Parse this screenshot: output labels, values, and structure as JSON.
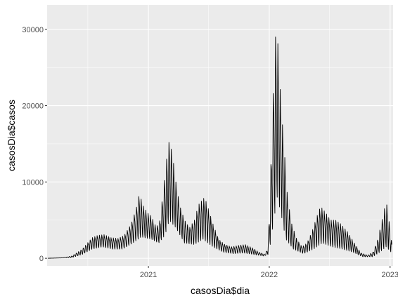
{
  "chart_data": {
    "type": "line",
    "title": "",
    "xlabel": "casosDia$dia",
    "ylabel": "casosDia$casos",
    "xlim": [
      "2020-03-01",
      "2023-01-10"
    ],
    "ylim": [
      -1000,
      33200
    ],
    "x_ticks": [
      {
        "label": "2021",
        "date": "2021-01-01"
      },
      {
        "label": "2022",
        "date": "2022-01-01"
      },
      {
        "label": "2023",
        "date": "2023-01-01"
      }
    ],
    "y_ticks": [
      {
        "label": "0",
        "value": 0
      },
      {
        "label": "10000",
        "value": 10000
      },
      {
        "label": "20000",
        "value": 20000
      },
      {
        "label": "30000",
        "value": 30000
      }
    ],
    "grid": true,
    "panel_background": "#ebebeb",
    "grid_color": "#ffffff",
    "line_color": "#000000",
    "series": [
      {
        "envelope_high": [
          [
            "2020-03-01",
            0
          ],
          [
            "2020-04-15",
            50
          ],
          [
            "2020-05-15",
            300
          ],
          [
            "2020-06-15",
            1200
          ],
          [
            "2020-07-01",
            2000
          ],
          [
            "2020-07-15",
            2700
          ],
          [
            "2020-08-01",
            3000
          ],
          [
            "2020-08-20",
            3100
          ],
          [
            "2020-09-10",
            2700
          ],
          [
            "2020-10-01",
            2600
          ],
          [
            "2020-10-20",
            3000
          ],
          [
            "2020-11-10",
            4500
          ],
          [
            "2020-11-25",
            6500
          ],
          [
            "2020-12-05",
            8500
          ],
          [
            "2020-12-15",
            7000
          ],
          [
            "2020-12-28",
            6000
          ],
          [
            "2021-01-10",
            5500
          ],
          [
            "2021-01-25",
            4000
          ],
          [
            "2021-02-05",
            5000
          ],
          [
            "2021-02-15",
            9000
          ],
          [
            "2021-02-25",
            13000
          ],
          [
            "2021-03-05",
            15500
          ],
          [
            "2021-03-15",
            13500
          ],
          [
            "2021-03-25",
            10000
          ],
          [
            "2021-04-05",
            7000
          ],
          [
            "2021-04-20",
            5000
          ],
          [
            "2021-05-05",
            4000
          ],
          [
            "2021-05-20",
            5000
          ],
          [
            "2021-06-01",
            7000
          ],
          [
            "2021-06-10",
            7500
          ],
          [
            "2021-06-20",
            8000
          ],
          [
            "2021-07-01",
            6500
          ],
          [
            "2021-07-15",
            4500
          ],
          [
            "2021-08-01",
            2500
          ],
          [
            "2021-08-20",
            1800
          ],
          [
            "2021-09-10",
            1500
          ],
          [
            "2021-10-01",
            1700
          ],
          [
            "2021-10-20",
            1800
          ],
          [
            "2021-11-10",
            1400
          ],
          [
            "2021-12-01",
            800
          ],
          [
            "2021-12-20",
            500
          ],
          [
            "2021-12-28",
            1500
          ],
          [
            "2022-01-03",
            8000
          ],
          [
            "2022-01-10",
            18000
          ],
          [
            "2022-01-15",
            24000
          ],
          [
            "2022-01-20",
            29000
          ],
          [
            "2022-01-24",
            31500
          ],
          [
            "2022-01-28",
            27000
          ],
          [
            "2022-02-05",
            20500
          ],
          [
            "2022-02-15",
            14500
          ],
          [
            "2022-02-25",
            8000
          ],
          [
            "2022-03-10",
            4500
          ],
          [
            "2022-03-25",
            2500
          ],
          [
            "2022-04-10",
            1500
          ],
          [
            "2022-04-25",
            2000
          ],
          [
            "2022-05-10",
            3500
          ],
          [
            "2022-05-25",
            5500
          ],
          [
            "2022-06-05",
            6800
          ],
          [
            "2022-06-20",
            6000
          ],
          [
            "2022-07-05",
            5000
          ],
          [
            "2022-07-20",
            5000
          ],
          [
            "2022-08-05",
            4500
          ],
          [
            "2022-08-25",
            3500
          ],
          [
            "2022-09-15",
            2000
          ],
          [
            "2022-10-05",
            700
          ],
          [
            "2022-10-25",
            400
          ],
          [
            "2022-11-10",
            800
          ],
          [
            "2022-11-25",
            2500
          ],
          [
            "2022-12-05",
            4500
          ],
          [
            "2022-12-15",
            6500
          ],
          [
            "2022-12-22",
            7000
          ],
          [
            "2022-12-30",
            4500
          ],
          [
            "2023-01-06",
            2000
          ]
        ],
        "envelope_low": [
          [
            "2020-03-01",
            0
          ],
          [
            "2020-05-15",
            100
          ],
          [
            "2020-06-15",
            500
          ],
          [
            "2020-07-15",
            1200
          ],
          [
            "2020-08-15",
            1500
          ],
          [
            "2020-09-15",
            1200
          ],
          [
            "2020-10-15",
            1200
          ],
          [
            "2020-11-15",
            2000
          ],
          [
            "2020-12-10",
            2800
          ],
          [
            "2021-01-10",
            2500
          ],
          [
            "2021-02-01",
            2000
          ],
          [
            "2021-02-20",
            3000
          ],
          [
            "2021-03-05",
            5000
          ],
          [
            "2021-03-25",
            4000
          ],
          [
            "2021-04-20",
            2000
          ],
          [
            "2021-05-20",
            1800
          ],
          [
            "2021-06-15",
            2500
          ],
          [
            "2021-07-15",
            1500
          ],
          [
            "2021-08-15",
            800
          ],
          [
            "2021-09-15",
            600
          ],
          [
            "2021-10-15",
            700
          ],
          [
            "2021-11-15",
            500
          ],
          [
            "2021-12-15",
            300
          ],
          [
            "2021-12-28",
            500
          ],
          [
            "2022-01-05",
            2000
          ],
          [
            "2022-01-15",
            5000
          ],
          [
            "2022-01-25",
            8000
          ],
          [
            "2022-02-05",
            6000
          ],
          [
            "2022-02-20",
            2500
          ],
          [
            "2022-03-15",
            1200
          ],
          [
            "2022-04-15",
            600
          ],
          [
            "2022-05-15",
            1200
          ],
          [
            "2022-06-10",
            2000
          ],
          [
            "2022-07-10",
            1500
          ],
          [
            "2022-08-10",
            1200
          ],
          [
            "2022-09-10",
            800
          ],
          [
            "2022-10-10",
            200
          ],
          [
            "2022-11-10",
            200
          ],
          [
            "2022-12-01",
            800
          ],
          [
            "2022-12-20",
            1500
          ],
          [
            "2023-01-06",
            700
          ]
        ]
      }
    ]
  }
}
